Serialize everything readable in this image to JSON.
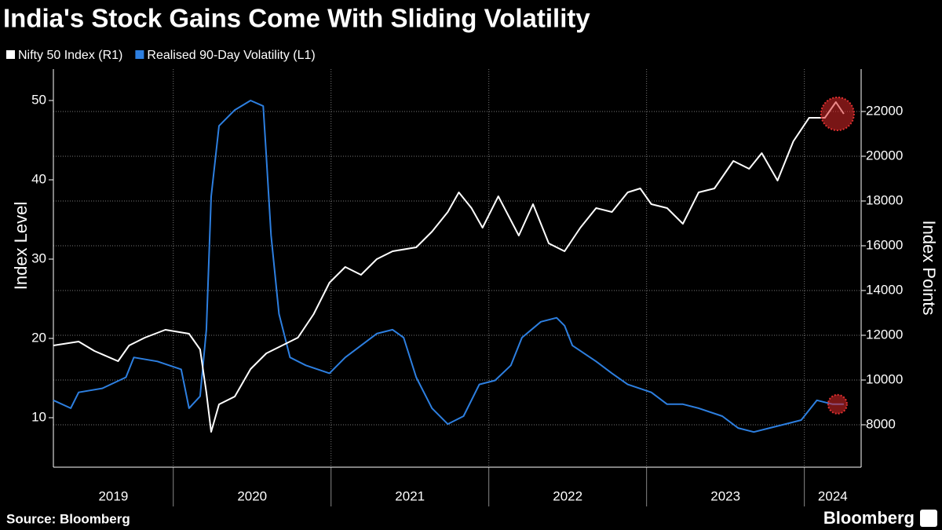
{
  "chart_data": {
    "type": "line",
    "title": "India's Stock Gains Come With Sliding Volatility",
    "y_label": "Index Level",
    "y2_label": "Index Points",
    "source": "Source: Bloomberg",
    "brand": "Bloomberg",
    "xlim": [
      2019.24,
      2024.36
    ],
    "xticks": [
      {
        "value": 2019.62,
        "label": "2019"
      },
      {
        "value": 2020.5,
        "label": "2020"
      },
      {
        "value": 2021.5,
        "label": "2021"
      },
      {
        "value": 2022.5,
        "label": "2022"
      },
      {
        "value": 2023.5,
        "label": "2023"
      },
      {
        "value": 2024.18,
        "label": "2024"
      }
    ],
    "xgrid": [
      2020,
      2021,
      2022,
      2023,
      2024
    ],
    "ylim": [
      3.76,
      53.96
    ],
    "yticks": [
      10,
      20,
      30,
      40,
      50
    ],
    "y2lim": [
      6105,
      23895
    ],
    "y2ticks": [
      8000,
      10000,
      12000,
      14000,
      16000,
      18000,
      20000,
      22000
    ],
    "grid": true,
    "series": [
      {
        "name": "Nifty 50 Index (R1)",
        "color": "#ffffff",
        "axis": "y2",
        "x": [
          2019.24,
          2019.4,
          2019.5,
          2019.65,
          2019.72,
          2019.82,
          2019.95,
          2020.1,
          2020.17,
          2020.21,
          2020.24,
          2020.29,
          2020.39,
          2020.49,
          2020.59,
          2020.69,
          2020.79,
          2020.89,
          2020.99,
          2021.09,
          2021.19,
          2021.29,
          2021.39,
          2021.54,
          2021.64,
          2021.74,
          2021.81,
          2021.89,
          2021.96,
          2022.06,
          2022.19,
          2022.28,
          2022.38,
          2022.48,
          2022.58,
          2022.68,
          2022.78,
          2022.88,
          2022.96,
          2023.03,
          2023.13,
          2023.23,
          2023.33,
          2023.43,
          2023.55,
          2023.65,
          2023.73,
          2023.83,
          2023.93,
          2024.03,
          2024.13,
          2024.2,
          2024.25
        ],
        "values": [
          11544,
          11720,
          11298,
          10842,
          11544,
          11895,
          12246,
          12070,
          11369,
          9439,
          7685,
          8912,
          9263,
          10491,
          11193,
          11544,
          11895,
          12948,
          14351,
          15053,
          14702,
          15404,
          15755,
          15930,
          16632,
          17509,
          18386,
          17685,
          16807,
          18211,
          16456,
          17860,
          16105,
          15755,
          16807,
          17685,
          17509,
          18386,
          18562,
          17860,
          17685,
          16983,
          18386,
          18562,
          19790,
          19439,
          20141,
          18913,
          20667,
          21720,
          21720,
          22422,
          21895
        ]
      },
      {
        "name": "Realised 90-Day Volatility (L1)",
        "color": "#2d7fe0",
        "axis": "y",
        "x": [
          2019.24,
          2019.35,
          2019.4,
          2019.55,
          2019.7,
          2019.75,
          2019.9,
          2020.05,
          2020.1,
          2020.17,
          2020.21,
          2020.24,
          2020.29,
          2020.39,
          2020.49,
          2020.57,
          2020.59,
          2020.62,
          2020.67,
          2020.74,
          2020.84,
          2020.99,
          2021.09,
          2021.19,
          2021.29,
          2021.39,
          2021.46,
          2021.54,
          2021.64,
          2021.74,
          2021.84,
          2021.94,
          2022.04,
          2022.14,
          2022.21,
          2022.33,
          2022.43,
          2022.48,
          2022.53,
          2022.68,
          2022.78,
          2022.88,
          2023.03,
          2023.13,
          2023.23,
          2023.33,
          2023.48,
          2023.58,
          2023.68,
          2023.78,
          2023.88,
          2023.98,
          2024.08,
          2024.18,
          2024.25
        ],
        "values": [
          12.2,
          11.2,
          13.2,
          13.7,
          15.1,
          17.6,
          17.1,
          16.1,
          11.2,
          12.7,
          21.1,
          37.9,
          46.8,
          48.8,
          50.0,
          49.3,
          42.9,
          33.0,
          23.1,
          17.6,
          16.6,
          15.6,
          17.6,
          19.1,
          20.6,
          21.1,
          20.1,
          15.1,
          11.2,
          9.2,
          10.2,
          14.2,
          14.7,
          16.6,
          20.1,
          22.1,
          22.6,
          21.6,
          19.1,
          17.1,
          15.6,
          14.2,
          13.2,
          11.7,
          11.7,
          11.2,
          10.2,
          8.7,
          8.2,
          8.7,
          9.2,
          9.7,
          12.2,
          11.7,
          11.7
        ]
      }
    ]
  }
}
